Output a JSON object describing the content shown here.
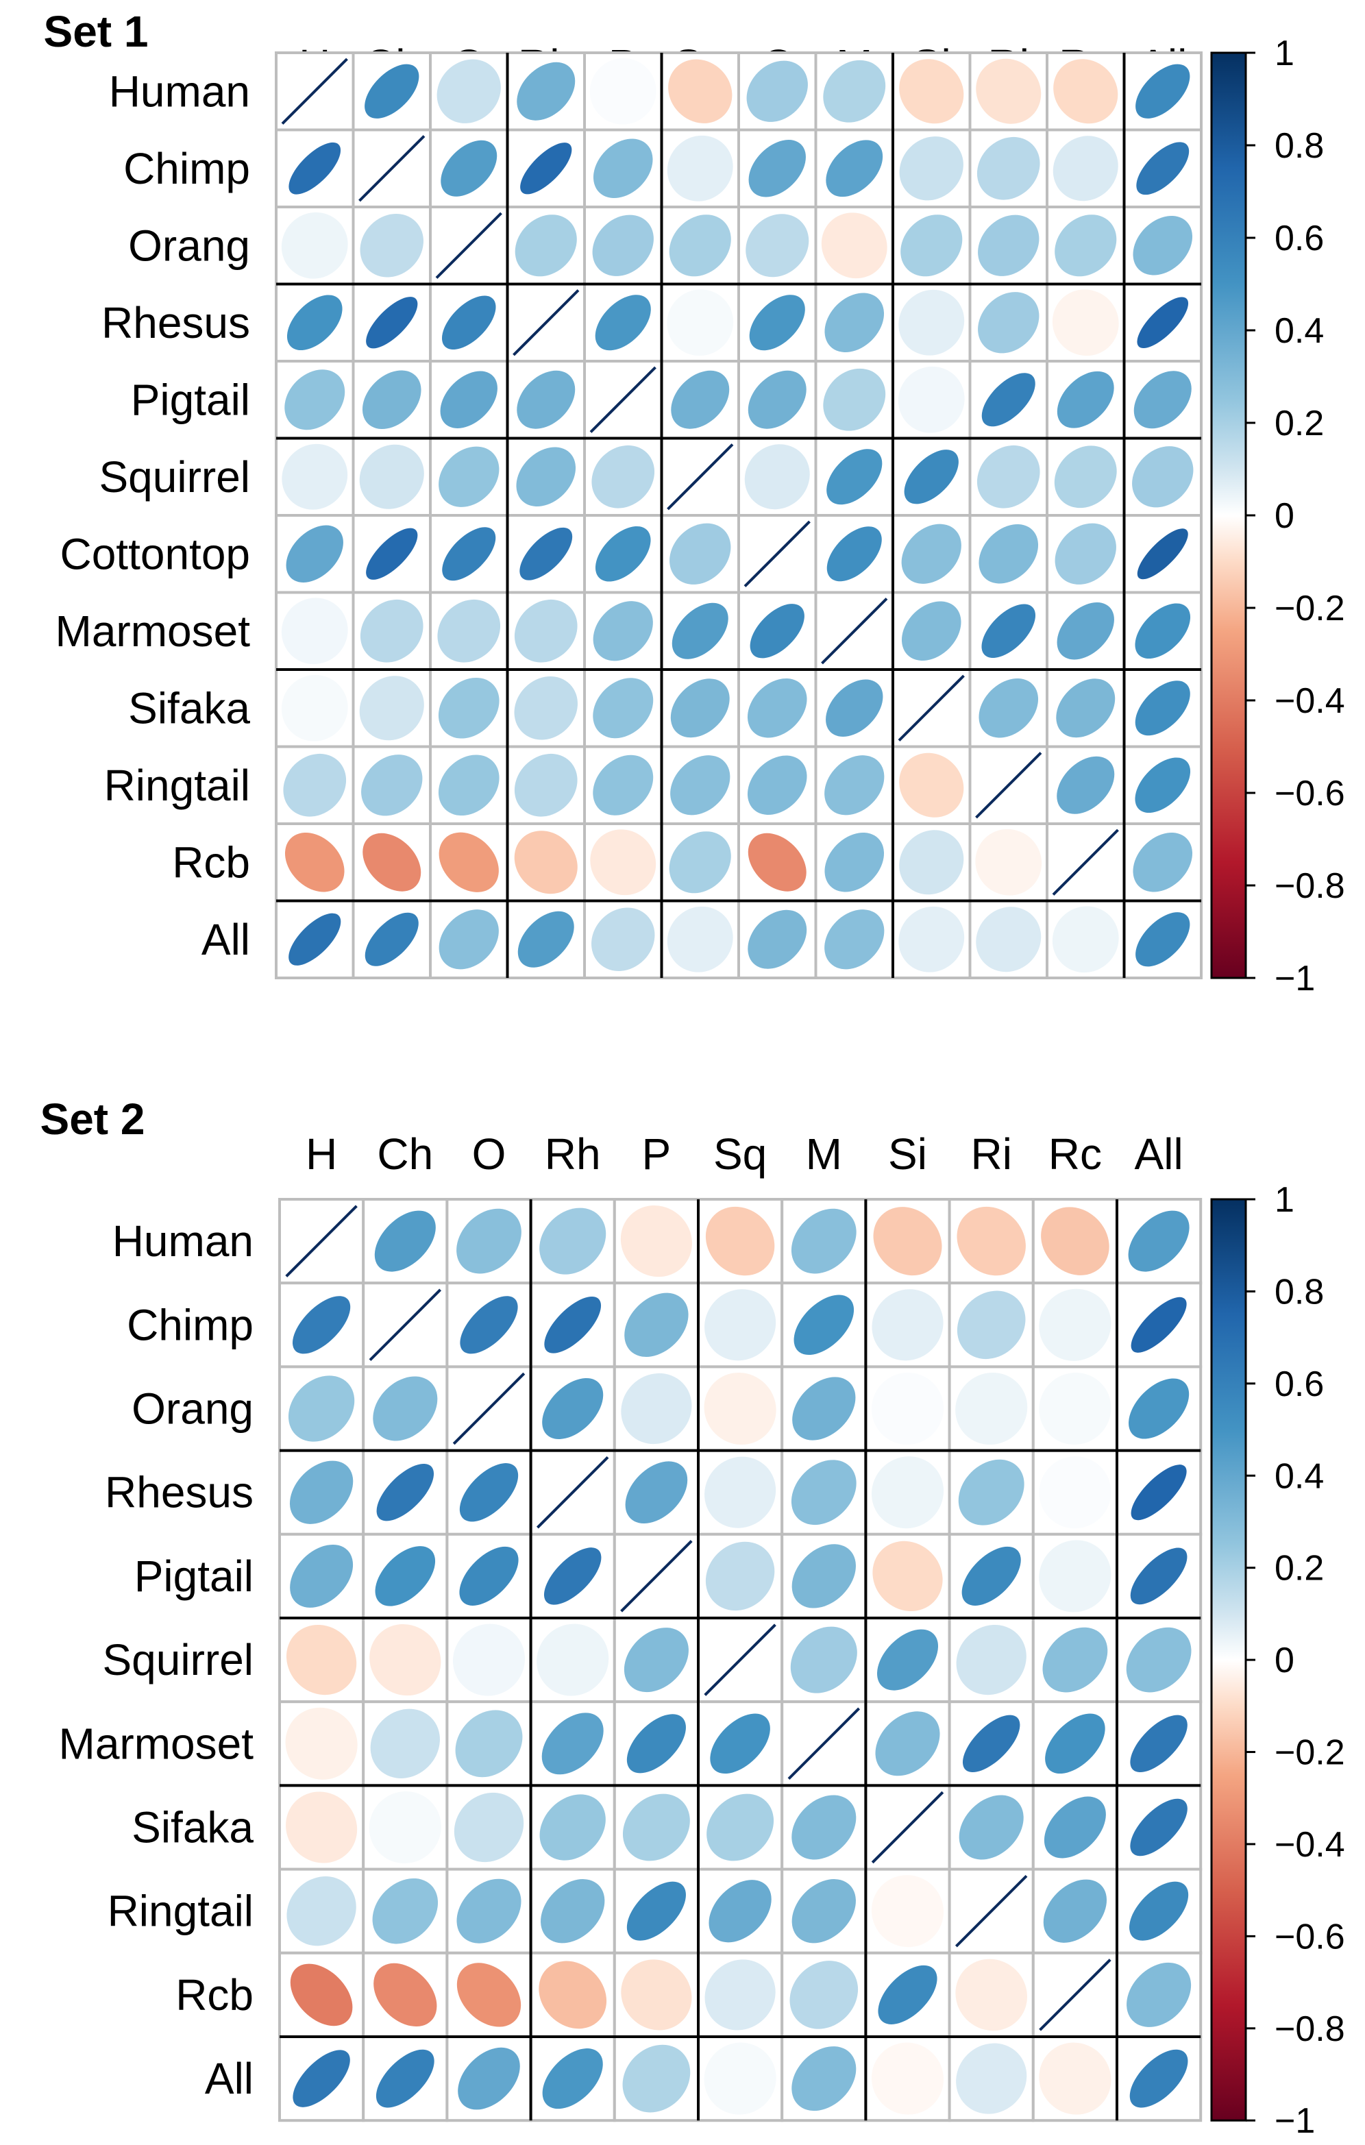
{
  "chart_data": [
    {
      "type": "heatmap",
      "subtype": "correlation-ellipse-matrix",
      "title": "Set 1",
      "col_labels": [
        "H",
        "Ch",
        "O",
        "Rh",
        "P",
        "Sq",
        "C",
        "M",
        "Si",
        "Ri",
        "Rc",
        "All"
      ],
      "row_labels": [
        "Human",
        "Chimp",
        "Orang",
        "Rhesus",
        "Pigtail",
        "Squirrel",
        "Cottontop",
        "Marmoset",
        "Sifaka",
        "Ringtail",
        "Rcb",
        "All"
      ],
      "group_separators_after_col": [
        3,
        5,
        8,
        11
      ],
      "group_separators_after_row": [
        3,
        5,
        8,
        11
      ],
      "values": [
        [
          1.0,
          0.55,
          0.12,
          0.35,
          0.01,
          -0.12,
          0.22,
          0.18,
          -0.1,
          -0.08,
          -0.1,
          0.55
        ],
        [
          0.7,
          1.0,
          0.45,
          0.72,
          0.3,
          0.06,
          0.4,
          0.42,
          0.12,
          0.16,
          0.08,
          0.65
        ],
        [
          0.04,
          0.14,
          1.0,
          0.2,
          0.22,
          0.2,
          0.15,
          -0.06,
          0.2,
          0.22,
          0.2,
          0.3
        ],
        [
          0.5,
          0.72,
          0.58,
          1.0,
          0.48,
          0.02,
          0.48,
          0.3,
          0.06,
          0.22,
          -0.03,
          0.75
        ],
        [
          0.26,
          0.33,
          0.4,
          0.35,
          1.0,
          0.35,
          0.35,
          0.18,
          0.03,
          0.6,
          0.42,
          0.38
        ],
        [
          0.06,
          0.1,
          0.25,
          0.3,
          0.16,
          1.0,
          0.08,
          0.48,
          0.55,
          0.16,
          0.18,
          0.22
        ],
        [
          0.4,
          0.72,
          0.6,
          0.65,
          0.5,
          0.22,
          1.0,
          0.52,
          0.28,
          0.3,
          0.22,
          0.78
        ],
        [
          0.03,
          0.16,
          0.16,
          0.16,
          0.28,
          0.45,
          0.55,
          1.0,
          0.3,
          0.58,
          0.4,
          0.5
        ],
        [
          0.02,
          0.1,
          0.24,
          0.14,
          0.26,
          0.32,
          0.3,
          0.4,
          1.0,
          0.3,
          0.32,
          0.52
        ],
        [
          0.16,
          0.22,
          0.24,
          0.16,
          0.26,
          0.28,
          0.3,
          0.28,
          -0.1,
          1.0,
          0.38,
          0.5
        ],
        [
          -0.3,
          -0.35,
          -0.28,
          -0.15,
          -0.06,
          0.2,
          -0.35,
          0.3,
          0.1,
          -0.03,
          1.0,
          0.3
        ],
        [
          0.68,
          0.6,
          0.28,
          0.45,
          0.14,
          0.06,
          0.32,
          0.28,
          0.06,
          0.08,
          0.04,
          0.55
        ]
      ],
      "legend": {
        "ticks": [
          "1",
          "0.8",
          "0.6",
          "0.4",
          "0.2",
          "0",
          "−0.2",
          "−0.4",
          "−0.6",
          "−0.8",
          "−1"
        ],
        "range": [
          -1,
          1
        ],
        "placement": "right"
      }
    },
    {
      "type": "heatmap",
      "subtype": "correlation-ellipse-matrix",
      "title": "Set 2",
      "col_labels": [
        "H",
        "Ch",
        "O",
        "Rh",
        "P",
        "Sq",
        "M",
        "Si",
        "Ri",
        "Rc",
        "All"
      ],
      "row_labels": [
        "Human",
        "Chimp",
        "Orang",
        "Rhesus",
        "Pigtail",
        "Squirrel",
        "Marmoset",
        "Sifaka",
        "Ringtail",
        "Rcb",
        "All"
      ],
      "group_separators_after_col": [
        3,
        5,
        7,
        10
      ],
      "group_separators_after_row": [
        3,
        5,
        7,
        10
      ],
      "values": [
        [
          1.0,
          0.45,
          0.28,
          0.22,
          -0.06,
          -0.14,
          0.28,
          -0.15,
          -0.14,
          -0.16,
          0.45
        ],
        [
          0.62,
          1.0,
          0.62,
          0.68,
          0.32,
          0.06,
          0.5,
          0.06,
          0.16,
          0.04,
          0.75
        ],
        [
          0.24,
          0.3,
          1.0,
          0.45,
          0.08,
          -0.04,
          0.35,
          0.01,
          0.04,
          0.02,
          0.48
        ],
        [
          0.35,
          0.65,
          0.58,
          1.0,
          0.4,
          0.06,
          0.28,
          0.04,
          0.25,
          0.01,
          0.75
        ],
        [
          0.36,
          0.5,
          0.55,
          0.65,
          1.0,
          0.14,
          0.32,
          -0.1,
          0.55,
          0.04,
          0.68
        ],
        [
          -0.1,
          -0.06,
          0.03,
          0.04,
          0.3,
          1.0,
          0.22,
          0.45,
          0.1,
          0.28,
          0.28
        ],
        [
          -0.04,
          0.12,
          0.2,
          0.42,
          0.55,
          0.5,
          1.0,
          0.3,
          0.65,
          0.5,
          0.65
        ],
        [
          -0.06,
          0.02,
          0.12,
          0.24,
          0.2,
          0.2,
          0.3,
          1.0,
          0.3,
          0.42,
          0.65
        ],
        [
          0.12,
          0.26,
          0.3,
          0.32,
          0.55,
          0.38,
          0.32,
          -0.02,
          1.0,
          0.35,
          0.55
        ],
        [
          -0.4,
          -0.35,
          -0.32,
          -0.18,
          -0.08,
          0.08,
          0.16,
          0.55,
          -0.05,
          1.0,
          0.3
        ],
        [
          0.65,
          0.6,
          0.4,
          0.48,
          0.18,
          0.02,
          0.3,
          -0.02,
          0.08,
          -0.04,
          0.6
        ]
      ],
      "legend": {
        "ticks": [
          "1",
          "0.8",
          "0.6",
          "0.4",
          "0.2",
          "0",
          "−0.2",
          "−0.4",
          "−0.6",
          "−0.8",
          "−1"
        ],
        "range": [
          -1,
          1
        ],
        "placement": "right"
      }
    }
  ]
}
